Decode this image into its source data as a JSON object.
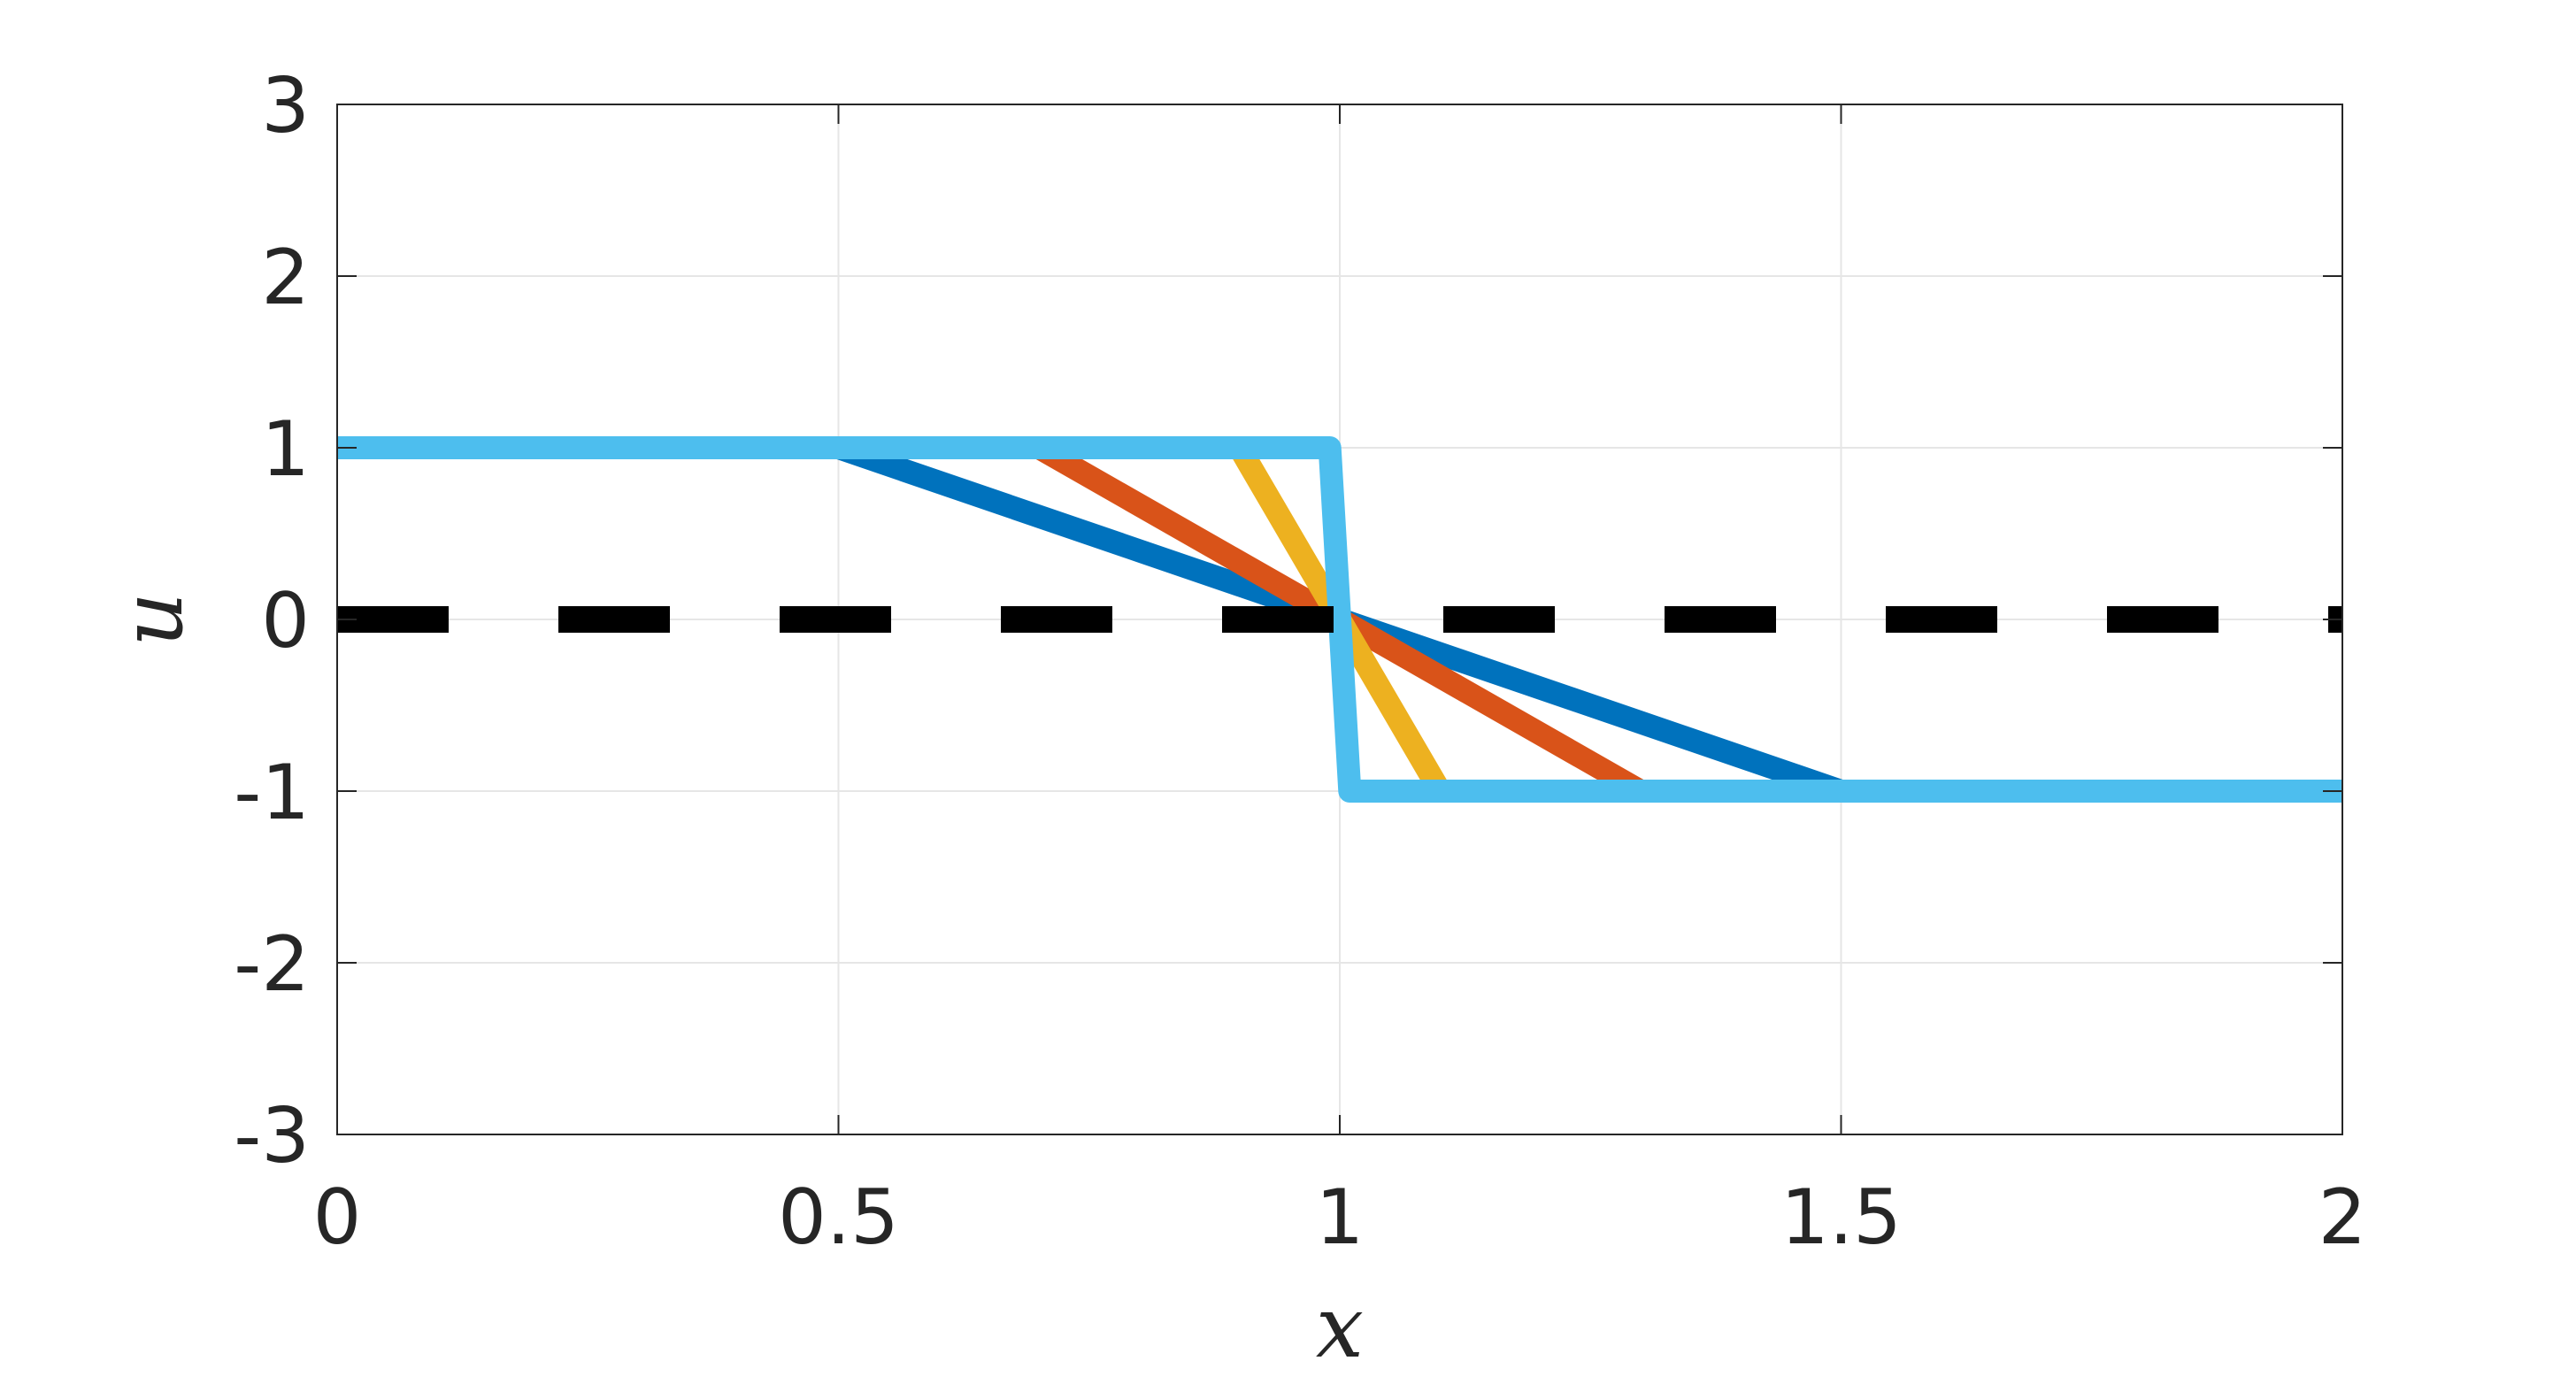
{
  "chart_data": {
    "type": "line",
    "title": "",
    "xlabel": "x",
    "ylabel": "u",
    "xlim": [
      0,
      2
    ],
    "ylim": [
      -3,
      3
    ],
    "xticks": [
      0,
      0.5,
      1,
      1.5,
      2
    ],
    "xtick_labels": [
      "0",
      "0.5",
      "1",
      "1.5",
      "2"
    ],
    "yticks": [
      -3,
      -2,
      -1,
      0,
      1,
      2,
      3
    ],
    "ytick_labels": [
      "-3",
      "-2",
      "-1",
      "0",
      "1",
      "2",
      "3"
    ],
    "grid": true,
    "series": [
      {
        "color": "#0072bd",
        "style": "solid",
        "x": [
          0,
          0.5,
          1.5,
          2
        ],
        "y": [
          1,
          1,
          -1,
          -1
        ]
      },
      {
        "color": "#d95319",
        "style": "solid",
        "x": [
          0,
          0.7,
          1.3,
          2
        ],
        "y": [
          1,
          1,
          -1,
          -1
        ]
      },
      {
        "color": "#edb120",
        "style": "solid",
        "x": [
          0,
          0.9,
          1.1,
          2
        ],
        "y": [
          1,
          1,
          -1,
          -1
        ]
      },
      {
        "color": "#4dbeee",
        "style": "solid",
        "x": [
          0,
          0.99,
          1.01,
          2
        ],
        "y": [
          1,
          1,
          -1,
          -1
        ]
      },
      {
        "color": "#000000",
        "style": "dashed",
        "x": [
          0,
          2
        ],
        "y": [
          0,
          0
        ]
      }
    ]
  }
}
